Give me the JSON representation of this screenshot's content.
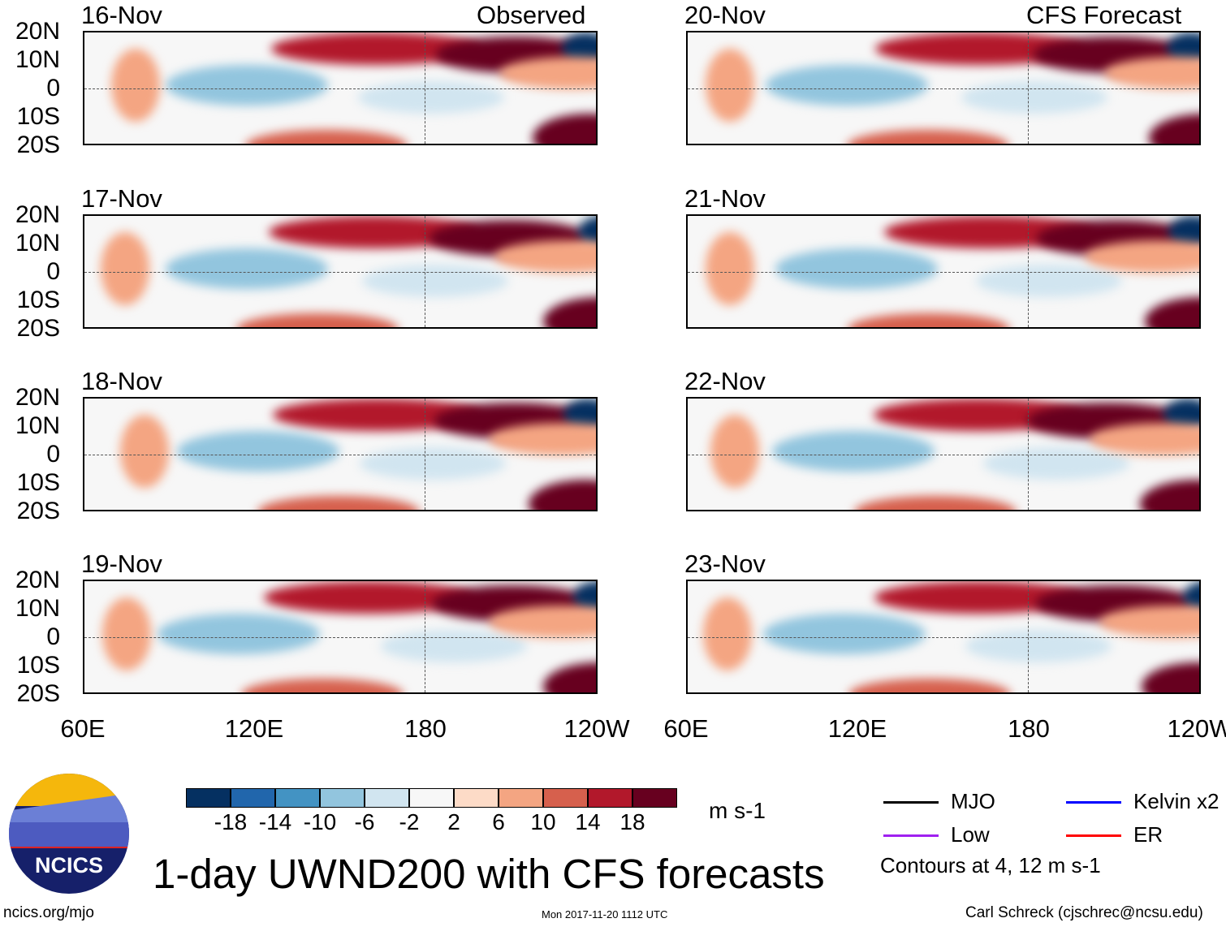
{
  "panels_left": {
    "header": "Observed",
    "dates": [
      "16-Nov",
      "17-Nov",
      "18-Nov",
      "19-Nov"
    ]
  },
  "panels_right": {
    "header": "CFS Forecast",
    "dates": [
      "20-Nov",
      "21-Nov",
      "22-Nov",
      "23-Nov"
    ]
  },
  "lat_labels": [
    "20N",
    "10N",
    "0",
    "10S",
    "20S"
  ],
  "lon_labels": [
    "60E",
    "120E",
    "180",
    "120W"
  ],
  "colorbar": {
    "colors": [
      "#053061",
      "#2166ac",
      "#4393c3",
      "#92c5de",
      "#d1e5f0",
      "#f7f7f7",
      "#fddbc7",
      "#f4a582",
      "#d6604d",
      "#b2182b",
      "#67001f"
    ],
    "labels": [
      "-18",
      "-14",
      "-10",
      "-6",
      "-2",
      "2",
      "6",
      "10",
      "14",
      "18"
    ],
    "units": "m s-1"
  },
  "legend": {
    "items": [
      {
        "label": "MJO",
        "color": "#000000"
      },
      {
        "label": "Kelvin x2",
        "color": "#0000ff"
      },
      {
        "label": "Low",
        "color": "#a020f0"
      },
      {
        "label": "ER",
        "color": "#ff0000"
      }
    ],
    "note": "Contours at 4, 12 m s-1"
  },
  "logo_text": "NCICS",
  "title": "1-day UWND200 with CFS forecasts",
  "footer": {
    "left": "ncics.org/mjo",
    "center": "Mon 2017-11-20 1112 UTC",
    "right": "Carl Schreck (cjschrec@ncsu.edu)"
  }
}
